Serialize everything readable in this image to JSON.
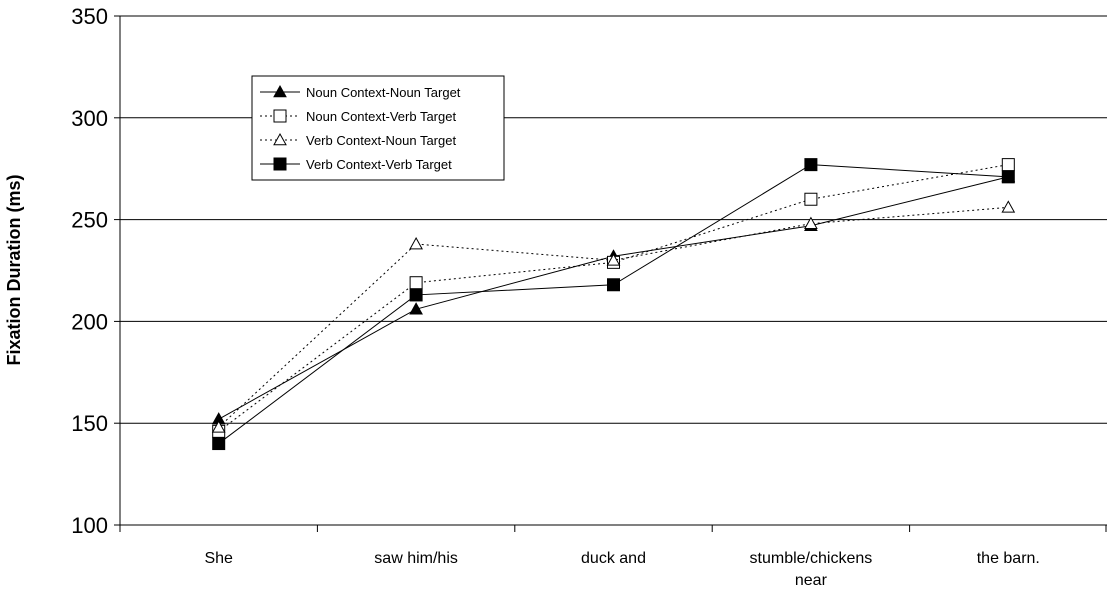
{
  "chart_data": {
    "type": "line",
    "title": "",
    "xlabel": "",
    "ylabel": "Fixation Duration (ms)",
    "ylim": [
      100,
      350
    ],
    "yticks": [
      100,
      150,
      200,
      250,
      300,
      350
    ],
    "grid": "horizontal",
    "legend_position": "top-left",
    "categories": [
      [
        "She"
      ],
      [
        "saw him/his"
      ],
      [
        "duck and"
      ],
      [
        "stumble/chickens",
        "near"
      ],
      [
        "the barn."
      ]
    ],
    "series": [
      {
        "name": "Noun Context-Noun Target",
        "line": "solid",
        "marker": "filled-triangle",
        "values": [
          152,
          206,
          232,
          247,
          271
        ]
      },
      {
        "name": "Noun Context-Verb Target",
        "line": "dotted",
        "marker": "open-square",
        "values": [
          146,
          219,
          229,
          260,
          277
        ]
      },
      {
        "name": "Verb Context-Noun Target",
        "line": "dotted",
        "marker": "open-triangle",
        "values": [
          148,
          238,
          230,
          248,
          256
        ]
      },
      {
        "name": "Verb Context-Verb Target",
        "line": "solid",
        "marker": "filled-square",
        "values": [
          140,
          213,
          218,
          277,
          271
        ]
      }
    ]
  }
}
